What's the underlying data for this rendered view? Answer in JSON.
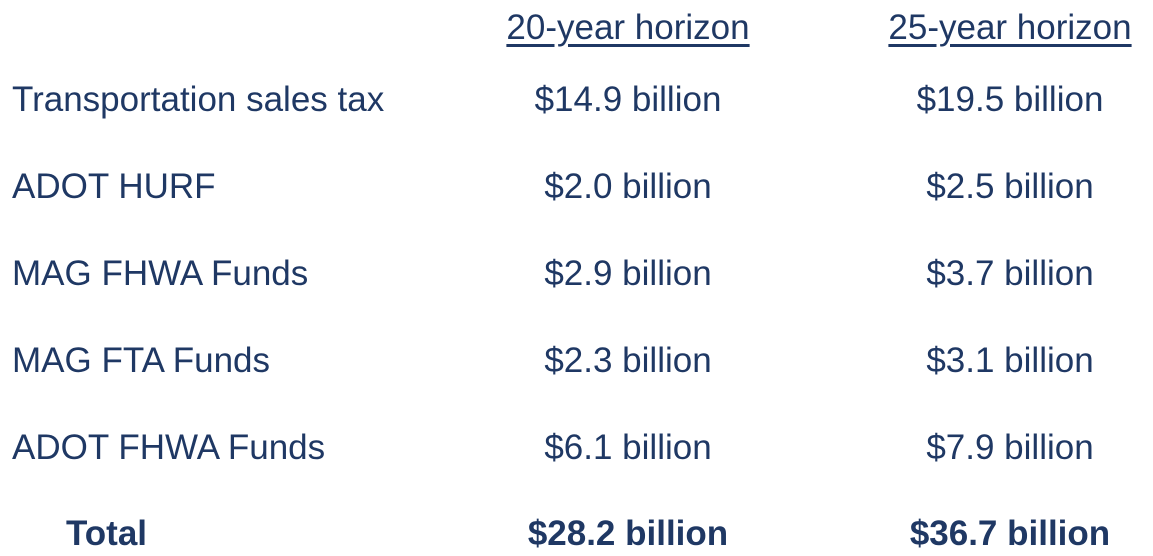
{
  "table": {
    "header": [
      "20-year horizon",
      "25-year horizon"
    ],
    "rows": [
      [
        "Transportation sales tax",
        "$14.9 billion",
        "$19.5 billion"
      ],
      [
        "ADOT HURF",
        "$2.0 billion",
        "$2.5 billion"
      ],
      [
        "MAG FHWA Funds",
        "$2.9 billion",
        "$3.7 billion"
      ],
      [
        "MAG FTA Funds",
        "$2.3 billion",
        "$3.1 billion"
      ],
      [
        "ADOT FHWA Funds",
        "$6.1 billion",
        "$7.9 billion"
      ]
    ],
    "total": [
      "Total",
      "$28.2 billion",
      "$36.7 billion"
    ]
  }
}
